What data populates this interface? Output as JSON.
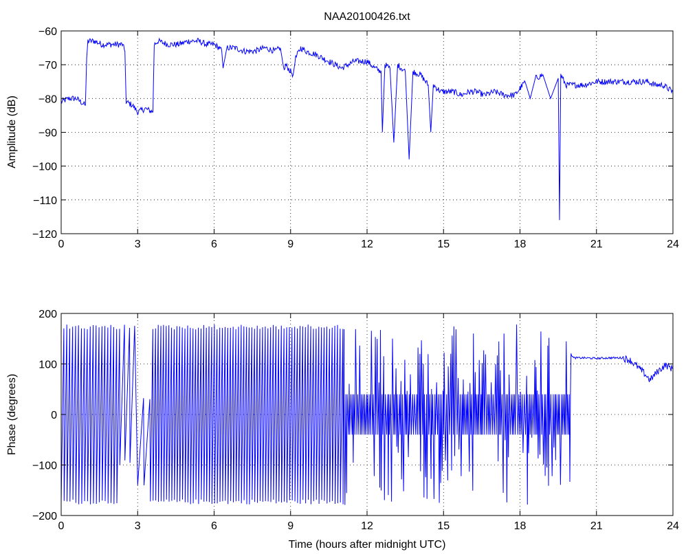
{
  "title": "NAA20100426.txt",
  "colors": {
    "line": "#0000ff",
    "axis": "#000000",
    "grid": "#000000",
    "background": "#ffffff"
  },
  "chart_data": [
    {
      "type": "line",
      "name": "amplitude-panel",
      "title": "NAA20100426.txt",
      "xlabel": "",
      "ylabel": "Amplitude (dB)",
      "xlim": [
        0,
        24
      ],
      "ylim": [
        -120,
        -60
      ],
      "xticks": [
        0,
        3,
        6,
        9,
        12,
        15,
        18,
        21,
        24
      ],
      "yticks": [
        -120,
        -110,
        -100,
        -90,
        -80,
        -70,
        -60
      ],
      "grid": true,
      "x": [
        0,
        0.3,
        0.6,
        0.95,
        1.0,
        1.05,
        1.3,
        1.6,
        2.0,
        2.4,
        2.5,
        2.55,
        2.8,
        3.0,
        3.3,
        3.6,
        3.65,
        3.8,
        4.2,
        4.6,
        5.0,
        5.4,
        5.7,
        6.0,
        6.2,
        6.3,
        6.35,
        6.5,
        6.8,
        7.2,
        7.6,
        8.0,
        8.4,
        8.6,
        8.75,
        8.8,
        9.1,
        9.2,
        9.4,
        9.6,
        10.0,
        10.5,
        11.0,
        11.5,
        12.0,
        12.3,
        12.55,
        12.6,
        12.7,
        12.9,
        13.05,
        13.2,
        13.5,
        13.65,
        13.8,
        14.1,
        14.4,
        14.5,
        14.6,
        14.9,
        15.2,
        15.4,
        15.7,
        16.0,
        16.3,
        16.6,
        17.0,
        17.4,
        17.8,
        18.0,
        18.2,
        18.4,
        18.6,
        18.9,
        19.2,
        19.5,
        19.55,
        19.6,
        19.8,
        20.0,
        20.5,
        21.0,
        21.5,
        22.0,
        22.5,
        23.0,
        23.3,
        23.6,
        24.0
      ],
      "y": [
        -81,
        -80,
        -80,
        -82,
        -68,
        -63,
        -63,
        -64,
        -64,
        -64,
        -66,
        -81,
        -82,
        -84,
        -83,
        -84,
        -64,
        -63,
        -64,
        -64,
        -63,
        -63,
        -64,
        -64,
        -65,
        -66,
        -71,
        -65,
        -65,
        -66,
        -66,
        -65,
        -66,
        -65,
        -72,
        -70,
        -73,
        -68,
        -65,
        -66,
        -67,
        -69,
        -71,
        -69,
        -69,
        -71,
        -72,
        -90,
        -70,
        -71,
        -93,
        -70,
        -72,
        -98,
        -72,
        -73,
        -76,
        -90,
        -76,
        -78,
        -78,
        -78,
        -79,
        -78,
        -78,
        -79,
        -78,
        -79,
        -79,
        -77,
        -75,
        -80,
        -74,
        -73,
        -80,
        -74,
        -116,
        -73,
        -76,
        -76,
        -76,
        -75,
        -75,
        -75,
        -75,
        -75,
        -76,
        -76,
        -78
      ]
    },
    {
      "type": "line",
      "name": "phase-panel",
      "title": "",
      "xlabel": "Time (hours after midnight UTC)",
      "ylabel": "Phase (degrees)",
      "xlim": [
        0,
        24
      ],
      "ylim": [
        -200,
        200
      ],
      "xticks": [
        0,
        3,
        6,
        9,
        12,
        15,
        18,
        21,
        24
      ],
      "yticks": [
        -200,
        -100,
        0,
        100,
        200
      ],
      "grid": true,
      "segments": [
        {
          "kind": "sawtooth",
          "x_start": 0.0,
          "x_end": 2.3,
          "period_hours": 0.115,
          "y_min": -178,
          "y_max": 178
        },
        {
          "kind": "sawtooth",
          "x_start": 2.3,
          "x_end": 2.9,
          "period_hours": 0.2,
          "y_min": -100,
          "y_max": 178
        },
        {
          "kind": "sawtooth",
          "x_start": 3.0,
          "x_end": 3.5,
          "period_hours": 0.25,
          "y_min": -150,
          "y_max": 40
        },
        {
          "kind": "sawtooth",
          "x_start": 3.5,
          "x_end": 11.1,
          "period_hours": 0.105,
          "y_min": -178,
          "y_max": 178
        },
        {
          "kind": "noise",
          "x_start": 11.1,
          "x_end": 20.0,
          "period_hours": 0.035,
          "y_min": -180,
          "y_max": 180
        }
      ],
      "tail": {
        "x": [
          20.0,
          20.1,
          20.5,
          21.0,
          21.5,
          22.0,
          22.3,
          22.6,
          22.9,
          23.1,
          23.4,
          23.7,
          24.0
        ],
        "y": [
          120,
          112,
          112,
          111,
          112,
          112,
          108,
          95,
          80,
          68,
          85,
          98,
          90
        ]
      }
    }
  ]
}
